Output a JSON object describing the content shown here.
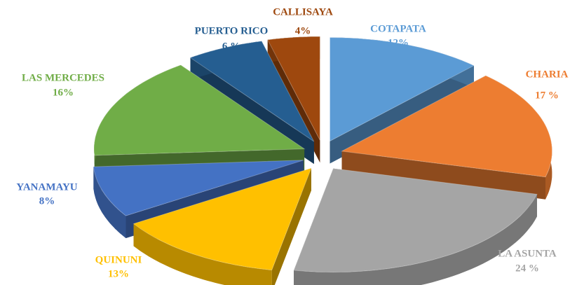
{
  "chart_data": {
    "type": "pie",
    "categories": [
      "COTAPATA",
      "CHARIA",
      "LA ASUNTA",
      "QUINUNI",
      "YANAMAYU",
      "LAS MERCEDES",
      "PUERTO RICO",
      "CALLISAYA"
    ],
    "values": [
      12,
      17,
      24,
      13,
      8,
      16,
      6,
      4
    ],
    "value_labels": [
      "12%",
      "17 %",
      "24 %",
      "13%",
      "8%",
      "16%",
      "6 %",
      "4%"
    ],
    "colors": [
      "#5b9bd5",
      "#ed7d31",
      "#a5a5a5",
      "#ffc000",
      "#4472c4",
      "#70ad47",
      "#255e91",
      "#9e480e"
    ]
  }
}
